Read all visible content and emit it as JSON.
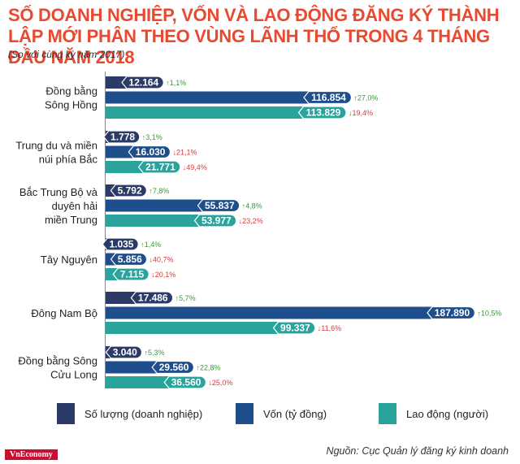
{
  "title": "SỐ DOANH NGHIỆP, VỐN VÀ LAO ĐỘNG ĐĂNG KÝ THÀNH LẬP MỚI PHÂN THEO VÙNG LÃNH THỔ TRONG 4 THÁNG ĐẦU NĂM 2018",
  "subtitle": "(So với cùng kỳ năm 2017)",
  "source": "Nguồn: Cục Quản lý đăng ký kinh doanh",
  "brand": "VnEconomy",
  "colors": {
    "title": "#e8492f",
    "doanh_nghiep": "#2b3a67",
    "von": "#1f4e8c",
    "lao_dong": "#2aa39d",
    "increase": "#3a9a3a",
    "decrease": "#d93a3a"
  },
  "legend": [
    {
      "label": "Số lượng (doanh nghiệp)",
      "color": "#2b3a67"
    },
    {
      "label": "Vốn (tỷ đồng)",
      "color": "#1f4e8c"
    },
    {
      "label": "Lao động (người)",
      "color": "#2aa39d"
    }
  ],
  "chart_data": {
    "type": "bar",
    "orientation": "horizontal",
    "categories": [
      [
        "Đồng bằng",
        "Sông Hồng"
      ],
      [
        "Trung du và miền",
        "núi phía Bắc"
      ],
      [
        "Bắc Trung Bộ và",
        "duyên hải",
        "miền Trung"
      ],
      [
        "Tây Nguyên"
      ],
      [
        "Đông Nam Bộ"
      ],
      [
        "Đồng bằng Sông",
        "Cửu Long"
      ]
    ],
    "series": [
      {
        "name": "Số lượng (doanh nghiệp)",
        "values": [
          12164,
          1778,
          5792,
          1035,
          17486,
          3040
        ],
        "labels": [
          "12.164",
          "1.778",
          "5.792",
          "1.035",
          "17.486",
          "3.040"
        ],
        "changes": [
          "1,1%",
          "3,1%",
          "7,8%",
          "1,4%",
          "5,7%",
          "5,3%"
        ],
        "direction": [
          "up",
          "up",
          "up",
          "up",
          "up",
          "up"
        ]
      },
      {
        "name": "Vốn (tỷ đồng)",
        "values": [
          116854,
          16030,
          55837,
          5856,
          187890,
          29560
        ],
        "labels": [
          "116.854",
          "16.030",
          "55.837",
          "5.856",
          "187.890",
          "29.560"
        ],
        "changes": [
          "27,0%",
          "21,1%",
          "4,8%",
          "40,7%",
          "10,5%",
          "22,8%"
        ],
        "direction": [
          "up",
          "down",
          "up",
          "down",
          "up",
          "up"
        ]
      },
      {
        "name": "Lao động (người)",
        "values": [
          113829,
          21771,
          53977,
          7115,
          99337,
          36560
        ],
        "labels": [
          "113.829",
          "21.771",
          "53.977",
          "7.115",
          "99.337",
          "36.560"
        ],
        "changes": [
          "19,4%",
          "49,4%",
          "23,2%",
          "20,1%",
          "11,6%",
          "25,0%"
        ],
        "direction": [
          "down",
          "down",
          "down",
          "down",
          "down",
          "down"
        ]
      }
    ],
    "xlabel": "",
    "ylabel": "",
    "grid": false,
    "legend_position": "bottom"
  }
}
